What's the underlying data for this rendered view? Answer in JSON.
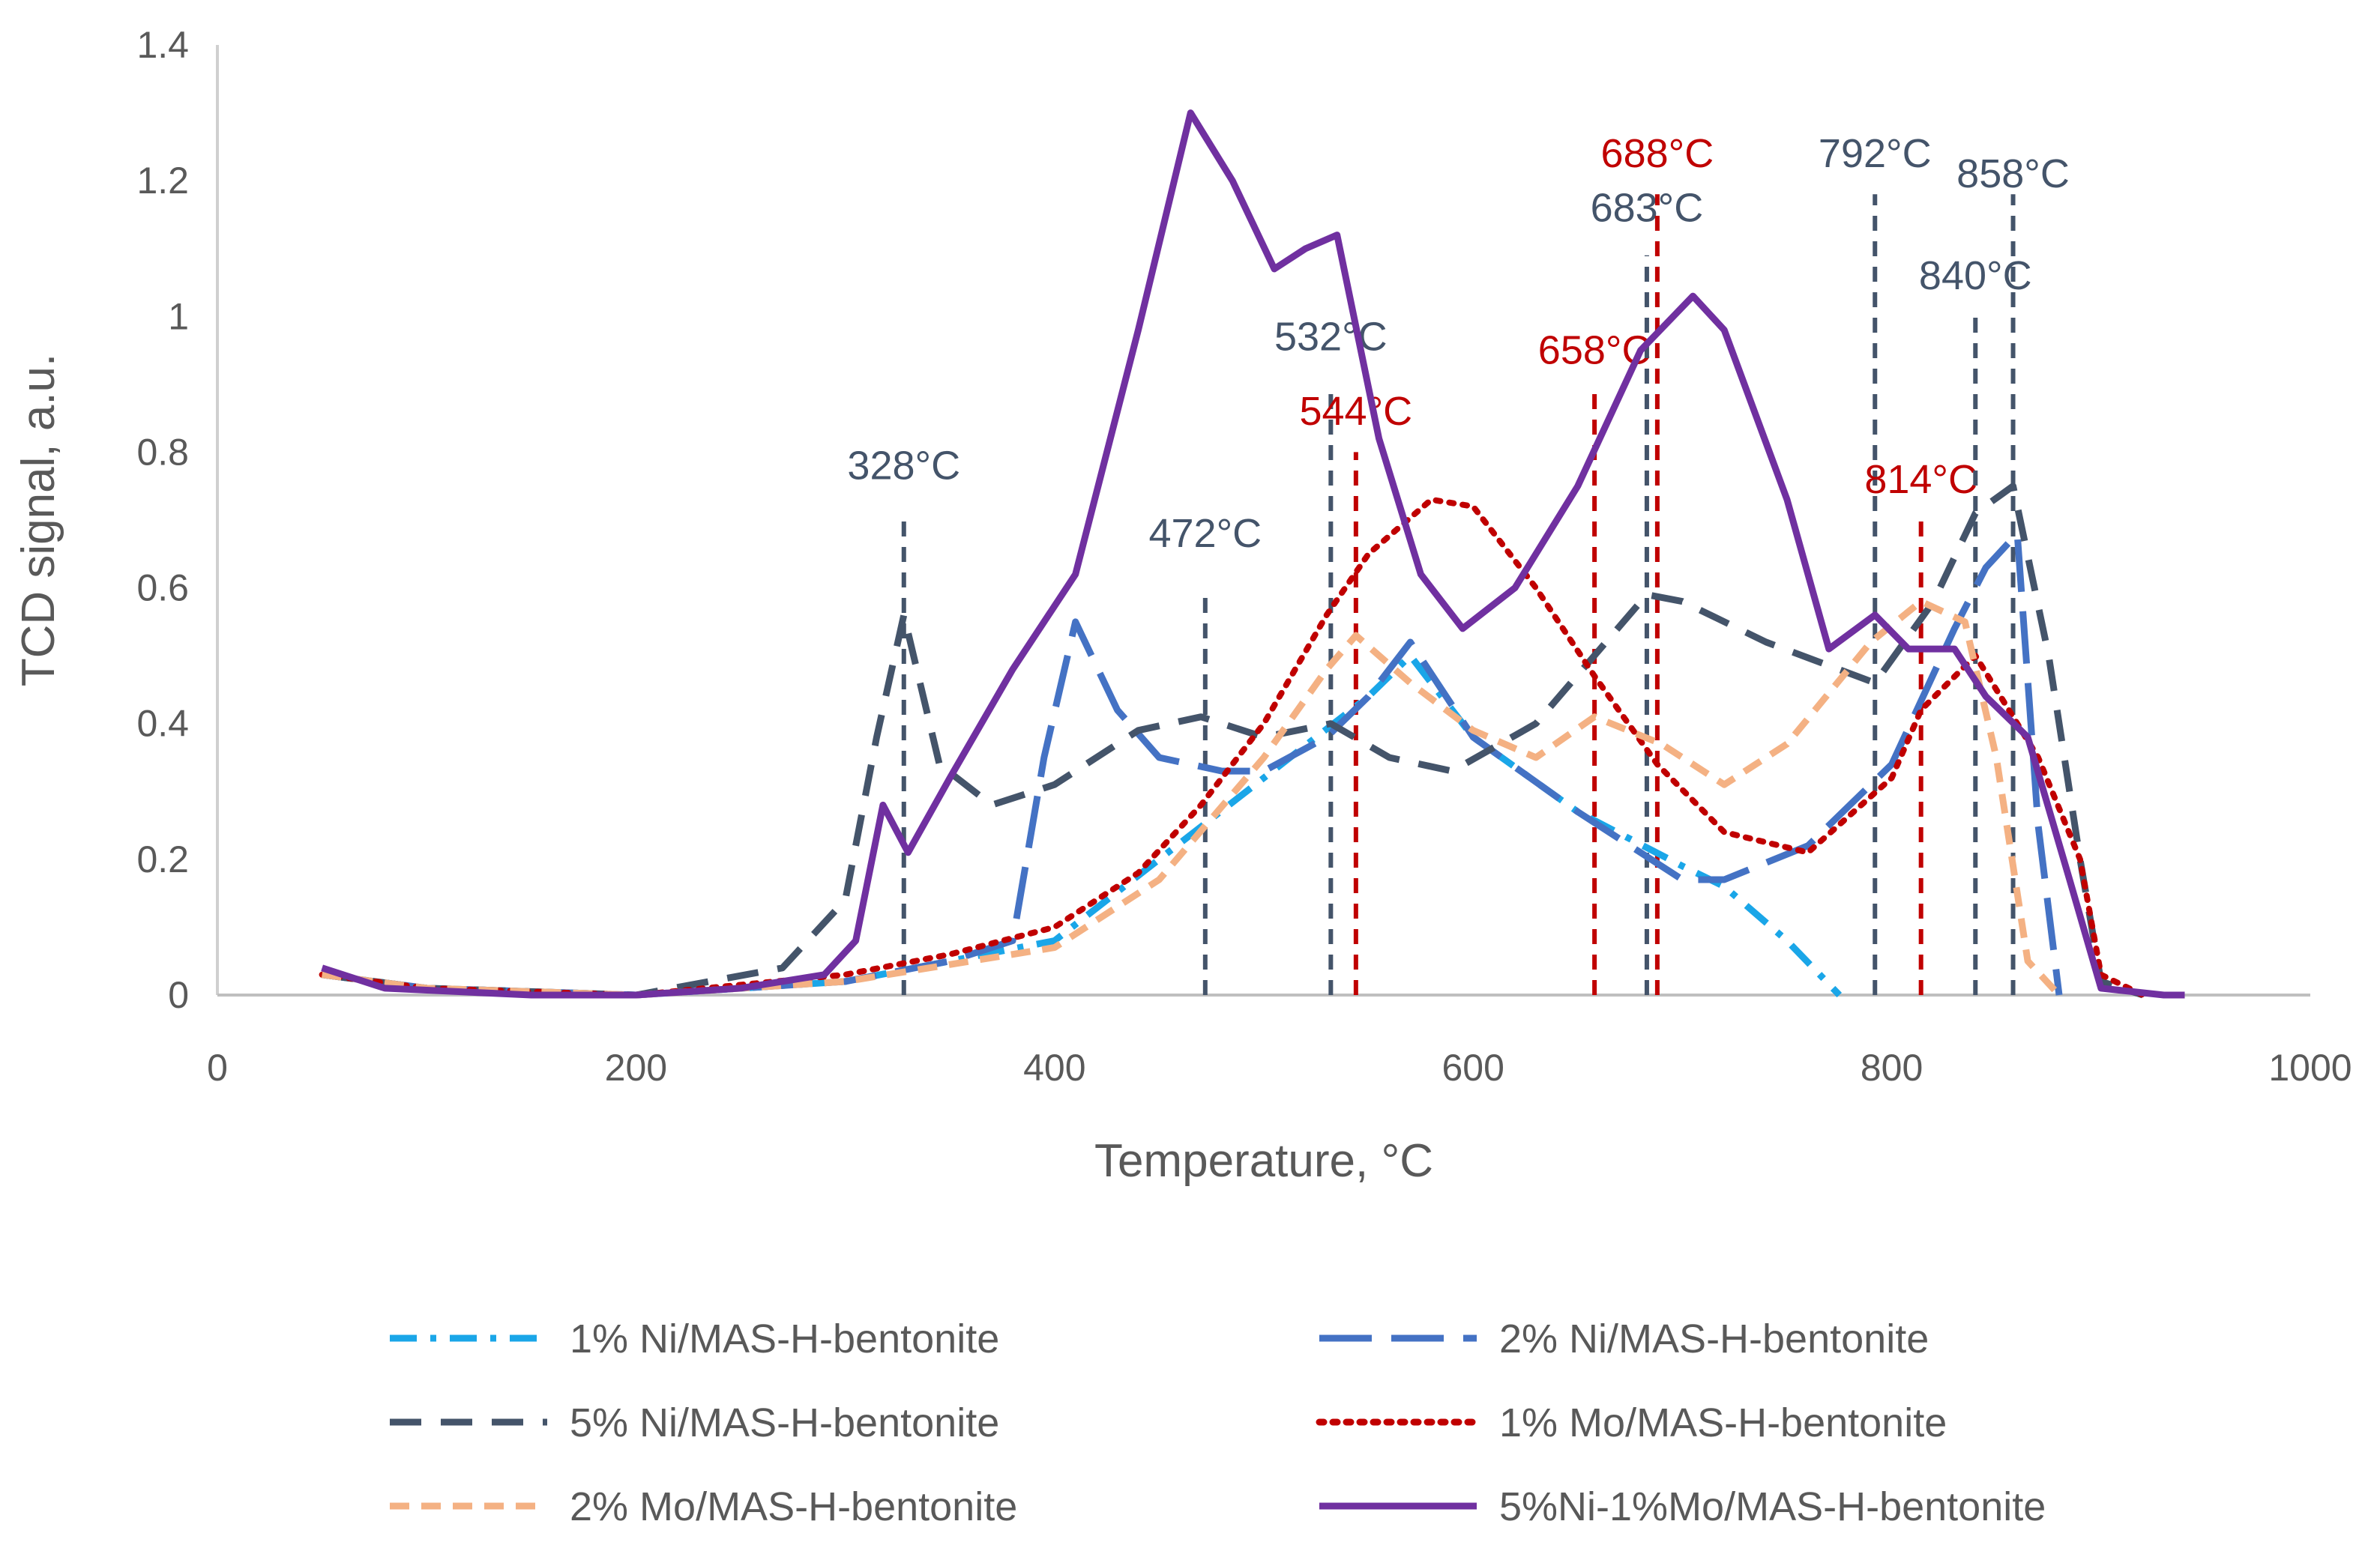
{
  "chart_data": {
    "type": "line",
    "title": "",
    "xlabel": "Temperature, °C",
    "ylabel": "TCD signal, a.u.",
    "xlim": [
      0,
      1000
    ],
    "ylim": [
      0,
      1.4
    ],
    "xticks": [
      0,
      200,
      400,
      600,
      800,
      1000
    ],
    "xtick_labels": [
      "0",
      "200",
      "400",
      "600",
      "800",
      "1000"
    ],
    "yticks": [
      0,
      0.2,
      0.4,
      0.6,
      0.8,
      1,
      1.2,
      1.4
    ],
    "ytick_labels": [
      "0",
      "0.2",
      "0.4",
      "0.6",
      "0.8",
      "1",
      "1.2",
      "1.4"
    ],
    "grid": false,
    "legend_position": "bottom",
    "series": [
      {
        "name": "1% Ni/MAS-H-bentonite",
        "color": "#1aa6e8",
        "dash": "dashdot",
        "x": [
          50,
          100,
          200,
          300,
          400,
          500,
          550,
          570,
          600,
          650,
          700,
          720,
          750,
          775
        ],
        "y": [
          0.03,
          0.01,
          0.0,
          0.02,
          0.08,
          0.32,
          0.44,
          0.5,
          0.38,
          0.27,
          0.19,
          0.16,
          0.08,
          0.0
        ]
      },
      {
        "name": "2% Ni/MAS-H-bentonite",
        "color": "#4472c4",
        "dash": "longdash",
        "x": [
          50,
          100,
          200,
          300,
          350,
          380,
          395,
          410,
          430,
          450,
          480,
          500,
          530,
          550,
          570,
          600,
          650,
          700,
          720,
          760,
          800,
          830,
          845,
          860,
          870,
          880
        ],
        "y": [
          0.03,
          0.01,
          0.0,
          0.02,
          0.05,
          0.08,
          0.35,
          0.55,
          0.42,
          0.35,
          0.33,
          0.33,
          0.38,
          0.44,
          0.52,
          0.38,
          0.27,
          0.17,
          0.17,
          0.22,
          0.34,
          0.54,
          0.63,
          0.68,
          0.25,
          0.0
        ]
      },
      {
        "name": "5% Ni/MAS-H-bentonite",
        "color": "#44546a",
        "dash": "dash",
        "x": [
          50,
          100,
          200,
          270,
          300,
          315,
          328,
          345,
          370,
          400,
          440,
          470,
          500,
          532,
          560,
          590,
          630,
          683,
          700,
          740,
          792,
          820,
          840,
          858,
          875,
          890,
          900,
          920
        ],
        "y": [
          0.03,
          0.01,
          0.0,
          0.04,
          0.14,
          0.38,
          0.56,
          0.34,
          0.28,
          0.31,
          0.39,
          0.41,
          0.38,
          0.4,
          0.35,
          0.33,
          0.4,
          0.59,
          0.58,
          0.52,
          0.46,
          0.58,
          0.71,
          0.75,
          0.5,
          0.2,
          0.02,
          0.0
        ]
      },
      {
        "name": "1% Mo/MAS-H-bentonite",
        "color": "#c00000",
        "dash": "dot",
        "x": [
          50,
          100,
          200,
          300,
          350,
          400,
          440,
          470,
          500,
          530,
          550,
          580,
          600,
          630,
          658,
          688,
          720,
          760,
          800,
          814,
          840,
          870,
          890,
          900,
          920
        ],
        "y": [
          0.03,
          0.01,
          0.0,
          0.03,
          0.06,
          0.1,
          0.18,
          0.28,
          0.4,
          0.56,
          0.65,
          0.73,
          0.72,
          0.6,
          0.47,
          0.34,
          0.24,
          0.21,
          0.32,
          0.42,
          0.5,
          0.35,
          0.2,
          0.03,
          0.0
        ]
      },
      {
        "name": "2% Mo/MAS-H-bentonite",
        "color": "#f4b183",
        "dash": "shortdash",
        "x": [
          50,
          100,
          200,
          300,
          400,
          450,
          500,
          530,
          544,
          570,
          600,
          630,
          658,
          690,
          720,
          750,
          790,
          814,
          835,
          850,
          865,
          880
        ],
        "y": [
          0.03,
          0.01,
          0.0,
          0.02,
          0.07,
          0.17,
          0.35,
          0.48,
          0.53,
          0.46,
          0.39,
          0.35,
          0.41,
          0.37,
          0.31,
          0.37,
          0.52,
          0.58,
          0.55,
          0.35,
          0.05,
          0.0
        ]
      },
      {
        "name": "5%Ni-1%Mo/MAS-H-bentonite",
        "color": "#7030a0",
        "dash": "solid",
        "x": [
          50,
          80,
          150,
          200,
          250,
          290,
          305,
          318,
          330,
          350,
          380,
          410,
          440,
          465,
          485,
          505,
          520,
          535,
          555,
          575,
          595,
          620,
          650,
          680,
          705,
          720,
          750,
          770,
          792,
          808,
          830,
          845,
          865,
          885,
          900,
          930,
          940
        ],
        "y": [
          0.04,
          0.01,
          0.0,
          0.0,
          0.01,
          0.03,
          0.08,
          0.28,
          0.21,
          0.32,
          0.48,
          0.62,
          0.98,
          1.3,
          1.2,
          1.07,
          1.1,
          1.12,
          0.82,
          0.62,
          0.54,
          0.6,
          0.75,
          0.95,
          1.03,
          0.98,
          0.73,
          0.51,
          0.56,
          0.51,
          0.51,
          0.44,
          0.38,
          0.17,
          0.01,
          0.0,
          0.0
        ]
      }
    ],
    "annotations": [
      {
        "text": "328°C",
        "x": 328,
        "line_top": 0.7,
        "label_y": 0.76,
        "color": "#44546a"
      },
      {
        "text": "472°C",
        "x": 472,
        "line_top": 0.6,
        "label_y": 0.66,
        "color": "#44546a"
      },
      {
        "text": "532°C",
        "x": 532,
        "line_top": 0.89,
        "label_y": 0.95,
        "color": "#44546a"
      },
      {
        "text": "544°C",
        "x": 544,
        "line_top": 0.8,
        "label_y": 0.84,
        "color": "#c00000"
      },
      {
        "text": "658°C",
        "x": 658,
        "line_top": 0.89,
        "label_y": 0.93,
        "color": "#c00000"
      },
      {
        "text": "683°C",
        "x": 683,
        "line_top": 1.09,
        "label_y": 1.14,
        "color": "#44546a"
      },
      {
        "text": "688°C",
        "x": 688,
        "line_top": 1.18,
        "label_y": 1.22,
        "color": "#c00000"
      },
      {
        "text": "792°C",
        "x": 792,
        "line_top": 1.18,
        "label_y": 1.22,
        "color": "#44546a"
      },
      {
        "text": "814°C",
        "x": 814,
        "line_top": 0.7,
        "label_y": 0.74,
        "color": "#c00000"
      },
      {
        "text": "840°C",
        "x": 840,
        "line_top": 1.0,
        "label_y": 1.04,
        "color": "#44546a"
      },
      {
        "text": "858°C",
        "x": 858,
        "line_top": 1.18,
        "label_y": 1.19,
        "color": "#44546a"
      }
    ]
  }
}
